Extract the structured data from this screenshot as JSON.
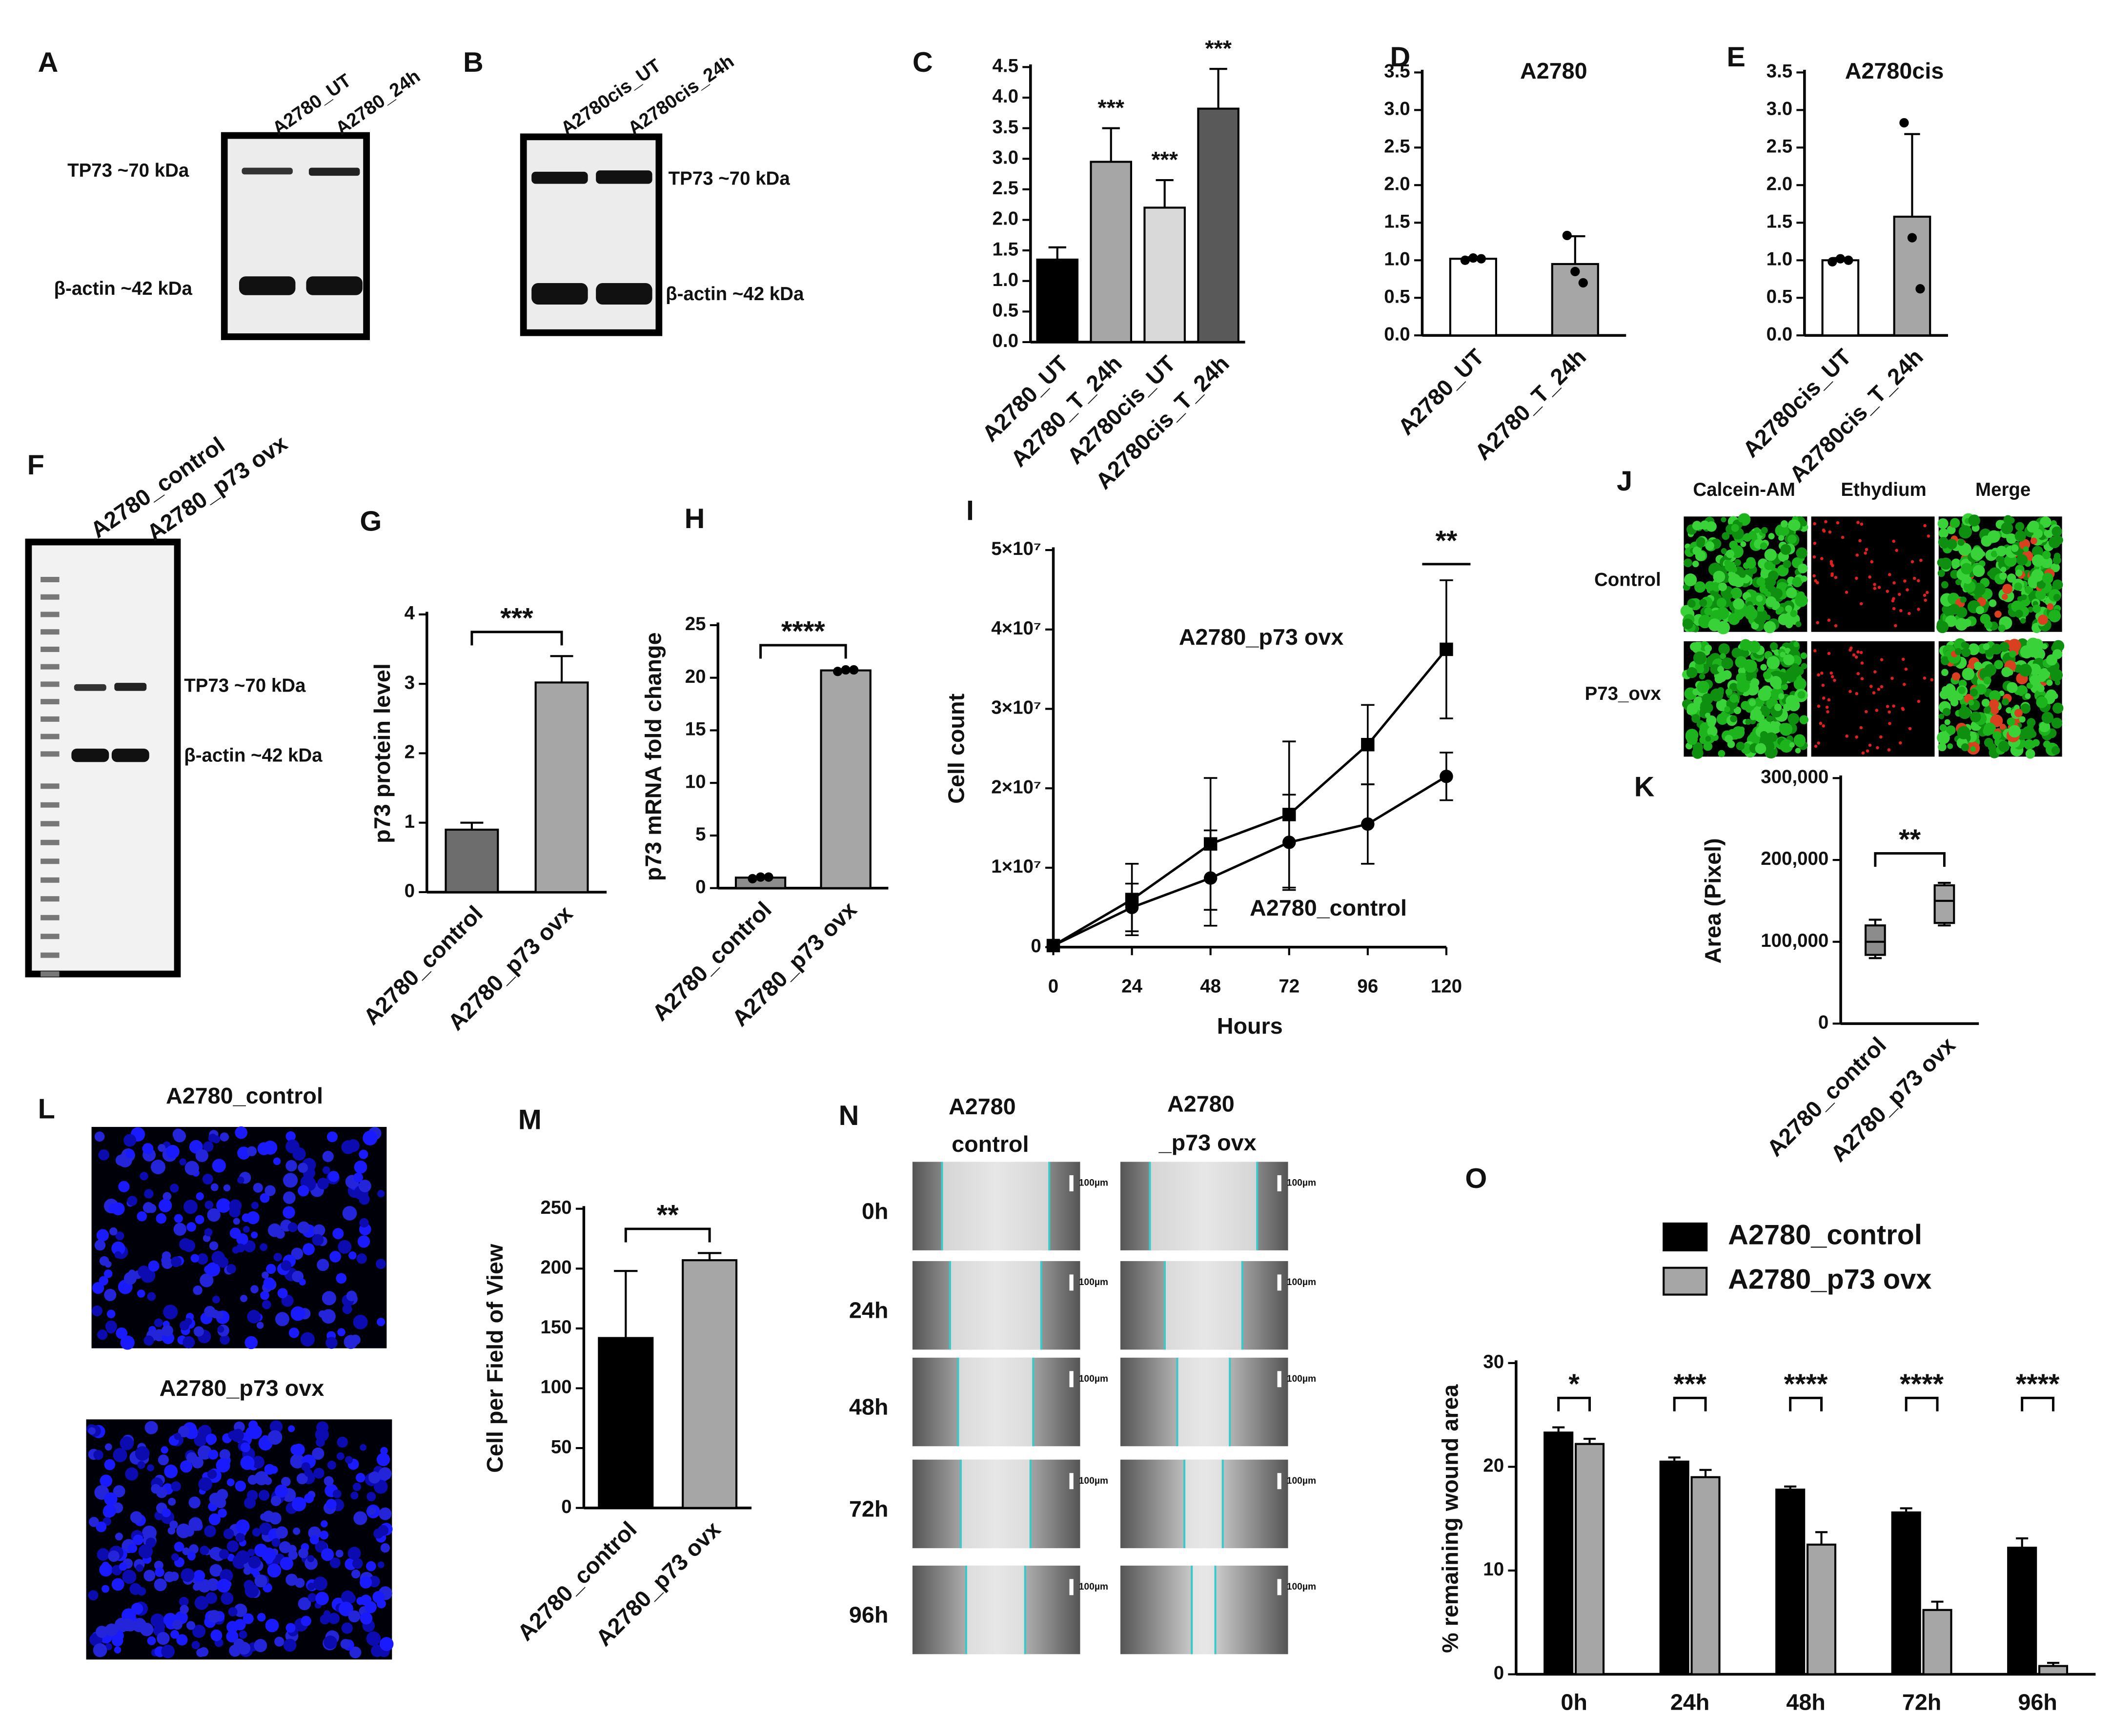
{
  "chart_data": [
    {
      "type": "bar",
      "label": "C",
      "categories": [
        "A2780_UT",
        "A2780_T_24h",
        "A2780cis_UT",
        "A2780cis_T_24h"
      ],
      "values": [
        1.35,
        2.95,
        2.2,
        3.82
      ],
      "errors": [
        0.2,
        0.55,
        0.45,
        0.65
      ],
      "colors": [
        "#000000",
        "#a6a6a6",
        "#d9d9d9",
        "#595959"
      ],
      "annotations": [
        null,
        "***",
        "***",
        "***"
      ],
      "ylim": [
        0,
        4.5
      ],
      "yticks": [
        {
          "value": 0,
          "label": "0.0"
        },
        {
          "value": 0.5,
          "label": "0.5"
        },
        {
          "value": 1,
          "label": "1.0"
        },
        {
          "value": 1.5,
          "label": "1.5"
        },
        {
          "value": 2,
          "label": "2.0"
        },
        {
          "value": 2.5,
          "label": "2.5"
        },
        {
          "value": 3,
          "label": "3.0"
        },
        {
          "value": 3.5,
          "label": "3.5"
        },
        {
          "value": 4,
          "label": "4.0"
        },
        {
          "value": 4.5,
          "label": "4.5"
        }
      ]
    },
    {
      "type": "bar",
      "label": "D",
      "title": "A2780",
      "categories": [
        "A2780_UT",
        "A2780_T_24h"
      ],
      "values": [
        1.02,
        0.95
      ],
      "errors": [
        0.02,
        0.37
      ],
      "points": [
        [
          1.0,
          1.03,
          1.02
        ],
        [
          1.33,
          0.85,
          0.7
        ]
      ],
      "colors": [
        "#ffffff",
        "#a6a6a6"
      ],
      "ylim": [
        0,
        3.5
      ],
      "yticks": [
        {
          "value": 0,
          "label": "0.0"
        },
        {
          "value": 0.5,
          "label": "0.5"
        },
        {
          "value": 1,
          "label": "1.0"
        },
        {
          "value": 1.5,
          "label": "1.5"
        },
        {
          "value": 2,
          "label": "2.0"
        },
        {
          "value": 2.5,
          "label": "2.5"
        },
        {
          "value": 3,
          "label": "3.0"
        },
        {
          "value": 3.5,
          "label": "3.5"
        }
      ]
    },
    {
      "type": "bar",
      "label": "E",
      "title": "A2780cis",
      "categories": [
        "A2780cis_UT",
        "A2780cis_T_24h"
      ],
      "values": [
        1.0,
        1.58
      ],
      "errors": [
        0.03,
        1.1
      ],
      "points": [
        [
          0.98,
          1.02,
          1.0
        ],
        [
          2.83,
          1.3,
          0.62
        ]
      ],
      "colors": [
        "#ffffff",
        "#a6a6a6"
      ],
      "ylim": [
        0,
        3.5
      ],
      "yticks": [
        {
          "value": 0,
          "label": "0.0"
        },
        {
          "value": 0.5,
          "label": "0.5"
        },
        {
          "value": 1,
          "label": "1.0"
        },
        {
          "value": 1.5,
          "label": "1.5"
        },
        {
          "value": 2,
          "label": "2.0"
        },
        {
          "value": 2.5,
          "label": "2.5"
        },
        {
          "value": 3,
          "label": "3.0"
        },
        {
          "value": 3.5,
          "label": "3.5"
        }
      ]
    },
    {
      "type": "bar",
      "label": "G",
      "ylabel": "p73 protein level",
      "categories": [
        "A2780_control",
        "A2780_p73 ovx"
      ],
      "values": [
        0.9,
        3.02
      ],
      "errors": [
        0.1,
        0.38
      ],
      "colors": [
        "#6d6d6d",
        "#a6a6a6"
      ],
      "significance": "***",
      "ylim": [
        0,
        4
      ],
      "yticks": [
        0,
        1,
        2,
        3,
        4
      ]
    },
    {
      "type": "bar",
      "label": "H",
      "ylabel": "p73 mRNA fold change",
      "categories": [
        "A2780_control",
        "A2780_p73 ovx"
      ],
      "values": [
        1.0,
        20.7
      ],
      "errors": [
        0.1,
        0.1
      ],
      "points": [
        [
          0.9,
          1.05,
          1.05
        ],
        [
          20.6,
          20.75,
          20.75
        ]
      ],
      "colors": [
        "#8c8c8c",
        "#a6a6a6"
      ],
      "significance": "****",
      "ylim": [
        0,
        25
      ],
      "yticks": [
        0,
        5,
        10,
        15,
        20,
        25
      ]
    },
    {
      "type": "line",
      "label": "I",
      "xlabel": "Hours",
      "ylabel": "Cell count",
      "x": [
        0,
        24,
        48,
        72,
        96,
        120
      ],
      "series": [
        {
          "name": "A2780_p73 ovx",
          "color": "#000000",
          "marker": "square",
          "values": [
            200000,
            6000000,
            13000000,
            16700000,
            25500000,
            37500000
          ],
          "errors": [
            0,
            4500000,
            8300000,
            9200000,
            5000000,
            8700000
          ]
        },
        {
          "name": "A2780_control",
          "color": "#000000",
          "marker": "circle",
          "values": [
            200000,
            5000000,
            8700000,
            13200000,
            15500000,
            21500000
          ],
          "errors": [
            0,
            3000000,
            6000000,
            6000000,
            5000000,
            3000000
          ]
        }
      ],
      "significance": "**",
      "xlim": [
        0,
        120
      ],
      "xticks": [
        0,
        24,
        48,
        72,
        96,
        120
      ],
      "ylim": [
        0,
        50000000
      ],
      "yticks": [
        0,
        {
          "value": 10000000,
          "label": "1×10⁷"
        },
        {
          "value": 20000000,
          "label": "2×10⁷"
        },
        {
          "value": 30000000,
          "label": "3×10⁷"
        },
        {
          "value": 40000000,
          "label": "4×10⁷"
        },
        {
          "value": 50000000,
          "label": "5×10⁷"
        }
      ]
    },
    {
      "type": "box",
      "label": "K",
      "ylabel": "Area (Pixel)",
      "categories": [
        "A2780_control",
        "A2780_p73 ovx"
      ],
      "boxes": [
        {
          "min": 80000,
          "q1": 84000,
          "median": 100000,
          "q3": 120000,
          "max": 127000
        },
        {
          "min": 120000,
          "q1": 123000,
          "median": 150000,
          "q3": 169000,
          "max": 172000
        }
      ],
      "colors": [
        "#8c8c8c",
        "#a6a6a6"
      ],
      "significance": "**",
      "ylim": [
        0,
        300000
      ],
      "yticks": [
        0,
        {
          "value": 100000,
          "label": "100,000"
        },
        {
          "value": 200000,
          "label": "200,000"
        },
        {
          "value": 300000,
          "label": "300,000"
        }
      ]
    },
    {
      "type": "bar",
      "label": "M",
      "ylabel": "Cell per Field of View",
      "categories": [
        "A2780_control",
        "A2780_p73 ovx"
      ],
      "values": [
        142,
        207
      ],
      "errors": [
        56,
        6
      ],
      "colors": [
        "#000000",
        "#a6a6a6"
      ],
      "significance": "**",
      "ylim": [
        0,
        250
      ],
      "yticks": [
        0,
        50,
        100,
        150,
        200,
        250
      ]
    },
    {
      "type": "bar",
      "label": "O",
      "ylabel": "% remaining wound area",
      "categories": [
        "0h",
        "24h",
        "48h",
        "72h",
        "96h"
      ],
      "series": [
        {
          "name": "A2780_control",
          "color": "#000000",
          "values": [
            23.3,
            20.5,
            17.8,
            15.6,
            12.2
          ],
          "errors": [
            0.5,
            0.4,
            0.3,
            0.4,
            0.9
          ]
        },
        {
          "name": "A2780_p73 ovx",
          "color": "#a6a6a6",
          "values": [
            22.2,
            19.0,
            12.5,
            6.2,
            0.8
          ],
          "errors": [
            0.5,
            0.7,
            1.2,
            0.8,
            0.3
          ]
        }
      ],
      "significance": [
        "*",
        "***",
        "****",
        "****",
        "****"
      ],
      "legend": "top",
      "ylim": [
        0,
        30
      ],
      "yticks": [
        0,
        10,
        20,
        30
      ]
    }
  ],
  "blots": {
    "A": {
      "label": "A",
      "lanes": [
        "A2780_UT",
        "A2780_24h"
      ],
      "bands": [
        "TP73 ~70 kDa",
        "β-actin ~42 kDa"
      ]
    },
    "B": {
      "label": "B",
      "lanes": [
        "A2780cis_UT",
        "A2780cis_24h"
      ],
      "bands": [
        "TP73 ~70 kDa",
        "β-actin ~42 kDa"
      ]
    },
    "F": {
      "label": "F",
      "lanes": [
        "A2780_control",
        "A2780_p73 ovx"
      ],
      "bands": [
        "TP73 ~70 kDa",
        "β-actin ~42 kDa"
      ]
    }
  },
  "imaging": {
    "J": {
      "label": "J",
      "columns": [
        "Calcein-AM",
        "Ethydium",
        "Merge"
      ],
      "rows": [
        "Control",
        "P73_ovx"
      ]
    },
    "L": {
      "label": "L",
      "titles": [
        "A2780_control",
        "A2780_p73 ovx"
      ]
    },
    "N": {
      "label": "N",
      "columns": [
        [
          "A2780",
          "control"
        ],
        [
          "A2780",
          "_p73 ovx"
        ]
      ],
      "rows": [
        "0h",
        "24h",
        "48h",
        "72h",
        "96h"
      ],
      "scale": "100µm"
    }
  }
}
